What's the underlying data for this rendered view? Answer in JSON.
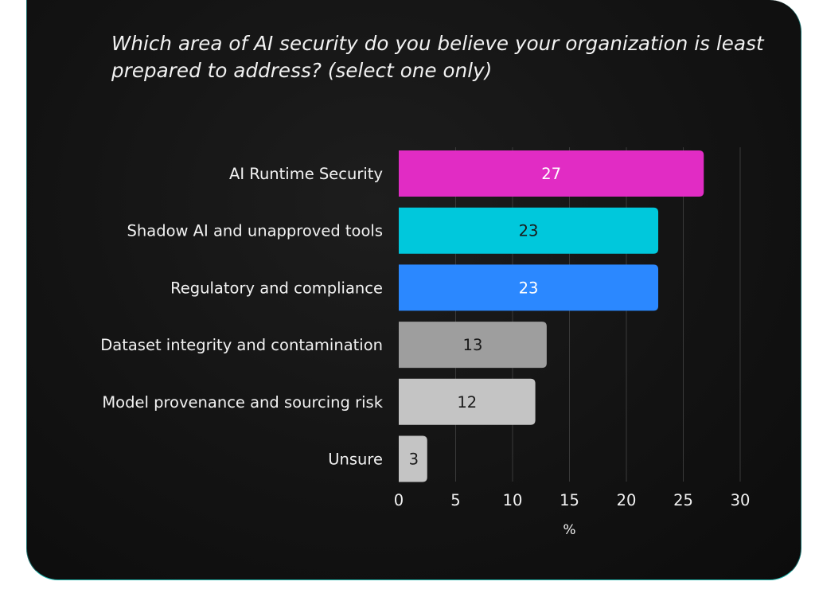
{
  "question": "Which area of AI security do you believe your organization is least prepared to address? (select one only)",
  "chart_data": {
    "type": "bar",
    "orientation": "horizontal",
    "title": "Which area of AI security do you believe your organization is least prepared to address? (select one only)",
    "categories": [
      "AI Runtime Security",
      "Shadow AI and unapproved tools",
      "Regulatory and compliance",
      "Dataset integrity and contamination",
      "Model provenance and sourcing risk",
      "Unsure"
    ],
    "values": [
      27,
      23,
      23,
      13,
      12,
      3
    ],
    "bar_extent": [
      26.8,
      22.8,
      22.8,
      13.0,
      12.0,
      2.5
    ],
    "data_labels": [
      "27",
      "23",
      "23",
      "13",
      "12",
      "3"
    ],
    "bar_colors": [
      "#e12cc4",
      "#00c8dc",
      "#2b88ff",
      "#9e9e9e",
      "#c4c4c4",
      "#c4c4c4"
    ],
    "label_colors": [
      "#ffffff",
      "#1a1a1a",
      "#ffffff",
      "#1a1a1a",
      "#1a1a1a",
      "#1a1a1a"
    ],
    "xlabel": "%",
    "ylabel": "",
    "xlim": [
      0,
      30
    ],
    "xticks": [
      0,
      5,
      10,
      15,
      20,
      25,
      30
    ],
    "xtick_labels": [
      "0",
      "5",
      "10",
      "15",
      "20",
      "25",
      "30"
    ],
    "grid": true,
    "legend": "none"
  },
  "colors": {
    "background": "#111111",
    "border_accent": "#1fb8b0",
    "text": "#f2f2f2",
    "gridline": "#3a3a3a"
  }
}
